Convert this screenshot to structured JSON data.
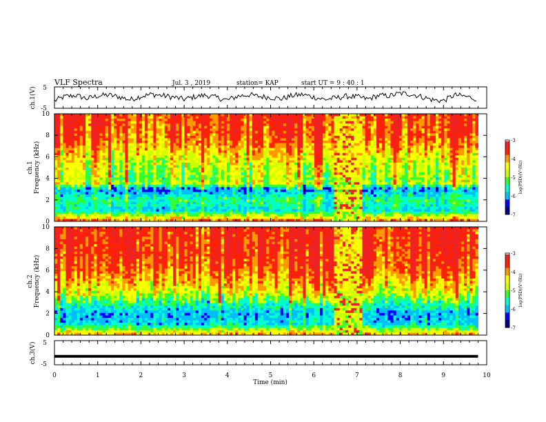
{
  "header": {
    "title": "VLF Spectra",
    "date": "Jul. 3 , 2019",
    "station": "station= KAP",
    "start": "start UT =  9 : 40 : 1"
  },
  "colors": {
    "background": "#ffffff",
    "trace": "#000000",
    "colormap": [
      "#000080",
      "#0000ff",
      "#00bfff",
      "#00ffcc",
      "#33ff33",
      "#ccff00",
      "#ffff00",
      "#ff9900",
      "#ff2200",
      "#ee2222",
      "#ffffff"
    ]
  },
  "chart_data": [
    {
      "type": "line",
      "name": "ch1-waveform",
      "ylabel": "ch.1(V)",
      "ylim": [
        -5,
        5
      ],
      "y_ticks": [
        "5",
        "-5"
      ],
      "x": [
        0.0,
        0.25,
        0.5,
        0.75,
        1.0,
        1.25,
        1.5,
        1.75,
        2.0,
        2.25,
        2.5,
        2.75,
        3.0,
        3.25,
        3.5,
        3.75,
        4.0,
        4.25,
        4.5,
        4.75,
        5.0,
        5.25,
        5.5,
        5.75,
        6.0,
        6.25,
        6.5,
        6.75,
        7.0,
        7.25,
        7.5,
        7.75,
        8.0,
        8.25,
        8.5,
        8.75,
        9.0,
        9.25,
        9.5,
        9.8
      ],
      "y": [
        -1.5,
        0.5,
        1.0,
        -0.5,
        0.8,
        1.2,
        0.3,
        -1.0,
        0.6,
        1.5,
        0.9,
        0.2,
        -0.8,
        0.4,
        1.1,
        0.0,
        -1.2,
        0.7,
        1.3,
        0.5,
        0.1,
        -0.6,
        0.9,
        1.4,
        0.2,
        -0.9,
        -0.2,
        0.6,
        0.3,
        -0.7,
        1.0,
        0.8,
        2.0,
        1.6,
        0.4,
        -1.1,
        -1.5,
        1.2,
        0.6,
        -0.8
      ]
    },
    {
      "type": "heatmap",
      "name": "ch1-spectrogram",
      "ylabel": "ch.1\nFrequency (kHz)",
      "xlim": [
        0,
        10
      ],
      "ylim": [
        0,
        10
      ],
      "y_ticks": [
        "0",
        "2",
        "4",
        "6",
        "8",
        "10"
      ],
      "colorbar": {
        "label": "log(PSD)(V²/Hz)",
        "range": [
          -7,
          -3
        ],
        "ticks": [
          "-3",
          "-4",
          "-5",
          "-6",
          "-7"
        ]
      },
      "freq_profile_khz": [
        0,
        1,
        2,
        3,
        3.5,
        4,
        5,
        6,
        7,
        8,
        9,
        10
      ],
      "log_psd_profile": [
        -3.8,
        -5.8,
        -5.4,
        -6.2,
        -4.8,
        -5.0,
        -4.8,
        -4.5,
        -4.1,
        -3.8,
        -3.7,
        -3.6
      ],
      "anomaly_interval_min": [
        6.5,
        7.1
      ]
    },
    {
      "type": "heatmap",
      "name": "ch2-spectrogram",
      "ylabel": "ch.2\nFrequency (kHz)",
      "xlim": [
        0,
        10
      ],
      "ylim": [
        0,
        10
      ],
      "y_ticks": [
        "0",
        "2",
        "4",
        "6",
        "8",
        "10"
      ],
      "colorbar": {
        "label": "log(PSD)(V²/Hz)",
        "range": [
          -7,
          -3
        ],
        "ticks": [
          "-3",
          "-4",
          "-5",
          "-6",
          "-7"
        ]
      },
      "freq_profile_khz": [
        0,
        1,
        2,
        3,
        4,
        5,
        6,
        7,
        8,
        9,
        10
      ],
      "log_psd_profile": [
        -4.0,
        -5.8,
        -6.0,
        -5.4,
        -4.6,
        -4.2,
        -3.8,
        -3.6,
        -3.5,
        -3.5,
        -3.4
      ],
      "anomaly_interval_min": [
        6.5,
        7.1
      ]
    },
    {
      "type": "line",
      "name": "ch3-waveform",
      "ylabel": "ch.3(V)",
      "ylim": [
        -5,
        5
      ],
      "y_ticks": [
        "5",
        "-5"
      ],
      "x": [
        0,
        9.8
      ],
      "y": [
        -1.5,
        -1.5
      ]
    }
  ],
  "x_axis": {
    "xlabel": "Time (min)",
    "xlim": [
      0,
      10
    ],
    "ticks": [
      "0",
      "1",
      "2",
      "3",
      "4",
      "5",
      "6",
      "7",
      "8",
      "9",
      "10"
    ]
  }
}
